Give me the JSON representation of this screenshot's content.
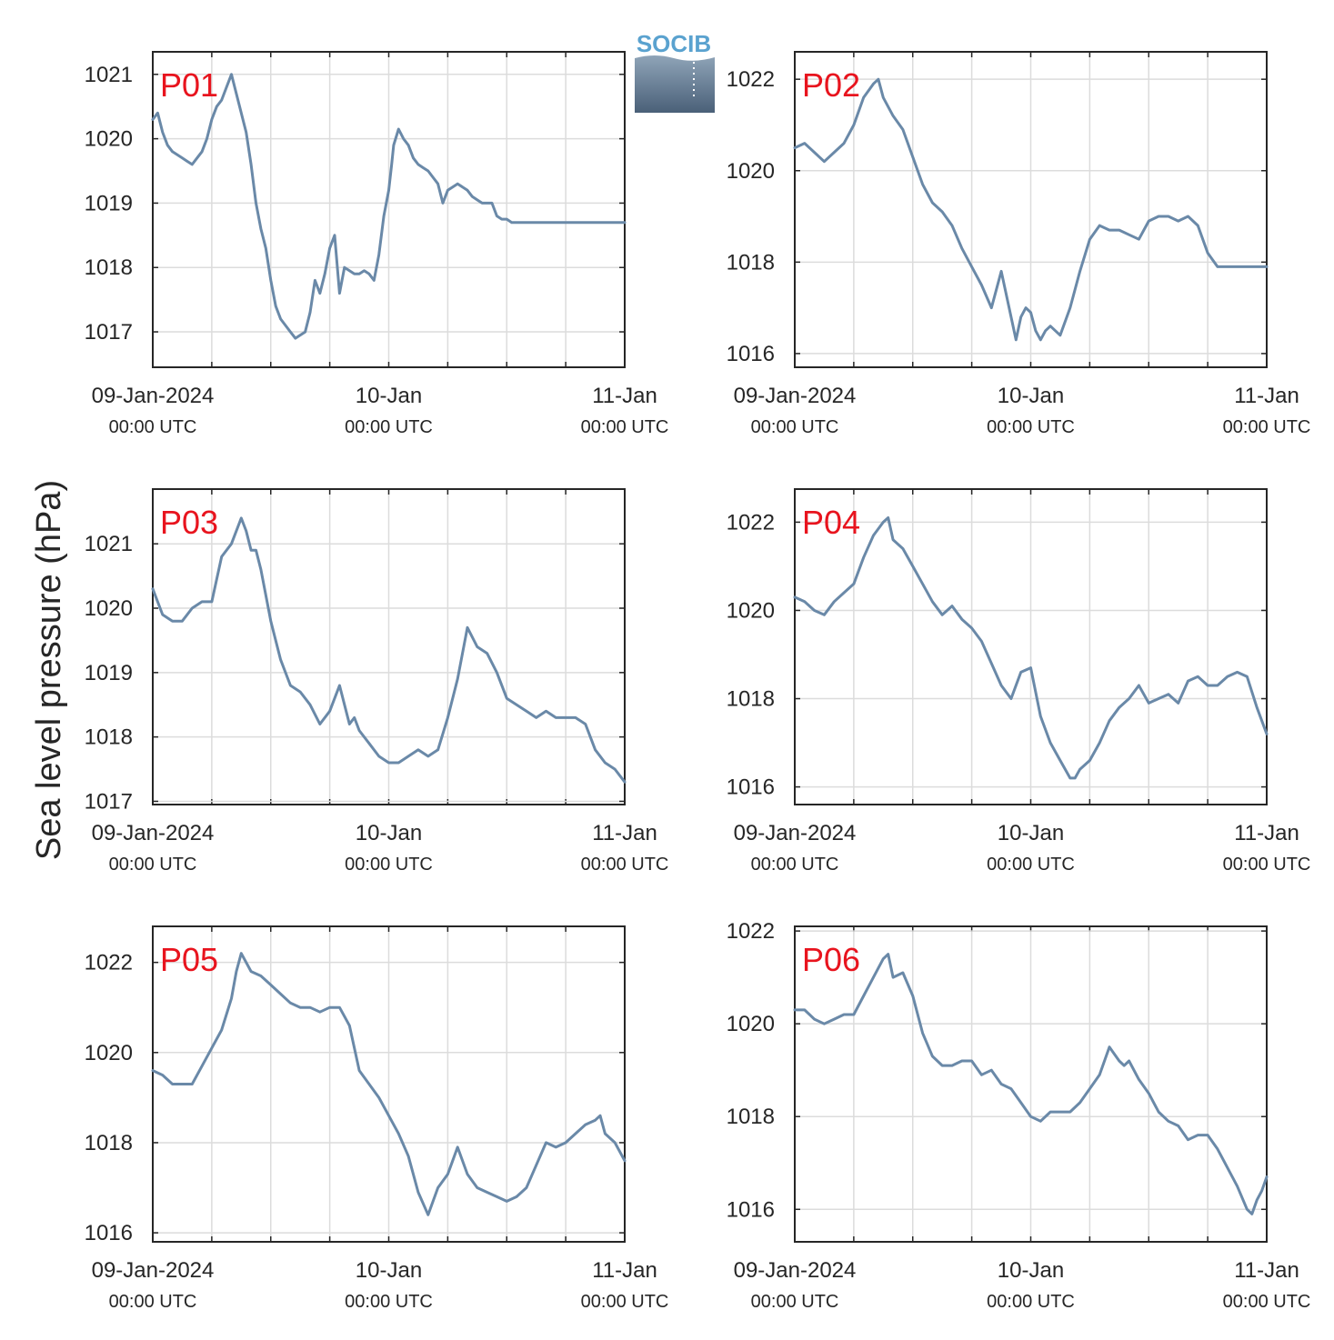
{
  "figure": {
    "ylabel": "Sea level pressure (hPa)",
    "logo_text": "SOCIB",
    "colors": {
      "line": "#6a89a8",
      "label": "#e8141e",
      "grid": "#dcdcdc",
      "axis": "#262626"
    }
  },
  "chart_data": [
    {
      "type": "line",
      "title": "P01",
      "ylabel": "Sea level pressure (hPa)",
      "ylim": [
        1016.45,
        1021.35
      ],
      "yticks": [
        1017,
        1018,
        1019,
        1020,
        1021
      ],
      "xlim": [
        0,
        48
      ],
      "xtick_labels": [
        {
          "x": 0,
          "date": "09-Jan-2024",
          "time": "00:00 UTC"
        },
        {
          "x": 24,
          "date": "10-Jan",
          "time": "00:00 UTC"
        },
        {
          "x": 48,
          "date": "11-Jan",
          "time": "00:00 UTC"
        }
      ],
      "grid": true,
      "x": [
        0,
        0.5,
        1,
        1.5,
        2,
        2.5,
        3,
        3.5,
        4,
        4.5,
        5,
        5.5,
        6,
        6.5,
        7,
        7.5,
        8,
        8.5,
        9,
        9.5,
        10,
        10.5,
        11,
        11.5,
        12,
        12.5,
        13,
        13.5,
        14,
        14.5,
        15,
        15.5,
        16,
        16.5,
        17,
        17.5,
        18,
        18.5,
        19,
        19.5,
        20,
        20.5,
        21,
        21.5,
        22,
        22.5,
        23,
        23.5,
        24,
        24.3,
        24.5,
        25,
        25.5,
        26,
        26.5,
        27,
        27.5,
        28,
        28.5,
        29,
        29.5,
        30,
        30.5,
        31,
        31.5,
        32,
        32.5,
        33,
        33.5,
        34,
        34.5,
        35,
        35.5,
        36,
        36.5,
        37,
        37.5,
        38,
        38.5,
        39,
        39.5,
        40,
        40.5,
        41,
        41.5,
        42,
        42.5,
        43,
        43.5,
        44,
        44.5,
        45,
        45.5,
        46,
        46.5,
        47,
        47.5,
        48
      ],
      "y": [
        1020.3,
        1020.4,
        1020.1,
        1019.9,
        1019.8,
        1019.75,
        1019.7,
        1019.65,
        1019.6,
        1019.7,
        1019.8,
        1020.0,
        1020.3,
        1020.5,
        1020.6,
        1020.8,
        1021.0,
        1020.7,
        1020.4,
        1020.1,
        1019.6,
        1019.0,
        1018.6,
        1018.3,
        1017.8,
        1017.4,
        1017.2,
        1017.1,
        1017.0,
        1016.9,
        1016.95,
        1017.0,
        1017.3,
        1017.8,
        1017.6,
        1017.9,
        1018.3,
        1018.5,
        1017.6,
        1018.0,
        1017.95,
        1017.9,
        1017.9,
        1017.95,
        1017.9,
        1017.8,
        1018.2,
        1018.8,
        1019.2,
        1019.6,
        1019.9,
        1020.15,
        1020.0,
        1019.9,
        1019.7,
        1019.6,
        1019.55,
        1019.5,
        1019.4,
        1019.3,
        1019.0,
        1019.2,
        1019.25,
        1019.3,
        1019.25,
        1019.2,
        1019.1,
        1019.05,
        1019.0,
        1019.0,
        1019.0,
        1018.8,
        1018.75,
        1018.75,
        1018.7,
        1018.7,
        1018.7,
        1018.7,
        1018.7,
        1018.7,
        1018.7,
        1018.7,
        1018.7,
        1018.7,
        1018.7,
        1018.7,
        1018.7,
        1018.7,
        1018.7,
        1018.7,
        1018.7,
        1018.7,
        1018.7,
        1018.7,
        1018.7,
        1018.7,
        1018.7,
        1018.7
      ]
    },
    {
      "type": "line",
      "title": "P02",
      "ylabel": "Sea level pressure (hPa)",
      "ylim": [
        1015.7,
        1022.6
      ],
      "yticks": [
        1016,
        1018,
        1020,
        1022
      ],
      "xlim": [
        0,
        48
      ],
      "xtick_labels": [
        {
          "x": 0,
          "date": "09-Jan-2024",
          "time": "00:00 UTC"
        },
        {
          "x": 24,
          "date": "10-Jan",
          "time": "00:00 UTC"
        },
        {
          "x": 48,
          "date": "11-Jan",
          "time": "00:00 UTC"
        }
      ],
      "grid": true,
      "x": [
        0,
        1,
        2,
        3,
        4,
        5,
        6,
        7,
        8,
        8.5,
        9,
        10,
        11,
        12,
        13,
        14,
        15,
        16,
        17,
        18,
        19,
        20,
        21,
        22,
        22.5,
        23,
        23.5,
        24,
        24.5,
        25,
        25.5,
        26,
        27,
        28,
        29,
        30,
        31,
        32,
        33,
        34,
        35,
        36,
        37,
        38,
        39,
        40,
        41,
        42,
        43,
        44,
        45,
        46,
        47,
        48
      ],
      "y": [
        1020.5,
        1020.6,
        1020.4,
        1020.2,
        1020.4,
        1020.6,
        1021.0,
        1021.6,
        1021.9,
        1022.0,
        1021.6,
        1021.2,
        1020.9,
        1020.3,
        1019.7,
        1019.3,
        1019.1,
        1018.8,
        1018.3,
        1017.9,
        1017.5,
        1017.0,
        1017.8,
        1016.8,
        1016.3,
        1016.8,
        1017.0,
        1016.9,
        1016.5,
        1016.3,
        1016.5,
        1016.6,
        1016.4,
        1017.0,
        1017.8,
        1018.5,
        1018.8,
        1018.7,
        1018.7,
        1018.6,
        1018.5,
        1018.9,
        1019.0,
        1019.0,
        1018.9,
        1019.0,
        1018.8,
        1018.2,
        1017.9,
        1017.9,
        1017.9,
        1017.9,
        1017.9,
        1017.9
      ]
    },
    {
      "type": "line",
      "title": "P03",
      "ylabel": "Sea level pressure (hPa)",
      "ylim": [
        1016.95,
        1021.85
      ],
      "yticks": [
        1017,
        1018,
        1019,
        1020,
        1021
      ],
      "xlim": [
        0,
        48
      ],
      "xtick_labels": [
        {
          "x": 0,
          "date": "09-Jan-2024",
          "time": "00:00 UTC"
        },
        {
          "x": 24,
          "date": "10-Jan",
          "time": "00:00 UTC"
        },
        {
          "x": 48,
          "date": "11-Jan",
          "time": "00:00 UTC"
        }
      ],
      "grid": true,
      "x": [
        0,
        1,
        2,
        3,
        4,
        5,
        6,
        7,
        8,
        9,
        9.5,
        10,
        10.5,
        11,
        12,
        13,
        14,
        15,
        16,
        17,
        18,
        19,
        20,
        20.5,
        21,
        22,
        23,
        24,
        25,
        26,
        27,
        28,
        29,
        30,
        31,
        32,
        33,
        34,
        35,
        36,
        37,
        38,
        39,
        40,
        41,
        42,
        43,
        44,
        45,
        46,
        47,
        48
      ],
      "y": [
        1020.3,
        1019.9,
        1019.8,
        1019.8,
        1020.0,
        1020.1,
        1020.1,
        1020.8,
        1021.0,
        1021.4,
        1021.2,
        1020.9,
        1020.9,
        1020.6,
        1019.8,
        1019.2,
        1018.8,
        1018.7,
        1018.5,
        1018.2,
        1018.4,
        1018.8,
        1018.2,
        1018.3,
        1018.1,
        1017.9,
        1017.7,
        1017.6,
        1017.6,
        1017.7,
        1017.8,
        1017.7,
        1017.8,
        1018.3,
        1018.9,
        1019.7,
        1019.4,
        1019.3,
        1019.0,
        1018.6,
        1018.5,
        1018.4,
        1018.3,
        1018.4,
        1018.3,
        1018.3,
        1018.3,
        1018.2,
        1017.8,
        1017.6,
        1017.5,
        1017.3
      ]
    },
    {
      "type": "line",
      "title": "P04",
      "ylabel": "Sea level pressure (hPa)",
      "ylim": [
        1015.6,
        1022.75
      ],
      "yticks": [
        1016,
        1018,
        1020,
        1022
      ],
      "xlim": [
        0,
        48
      ],
      "xtick_labels": [
        {
          "x": 0,
          "date": "09-Jan-2024",
          "time": "00:00 UTC"
        },
        {
          "x": 24,
          "date": "10-Jan",
          "time": "00:00 UTC"
        },
        {
          "x": 48,
          "date": "11-Jan",
          "time": "00:00 UTC"
        }
      ],
      "grid": true,
      "x": [
        0,
        1,
        2,
        3,
        4,
        5,
        6,
        7,
        8,
        9,
        9.5,
        10,
        11,
        12,
        13,
        14,
        15,
        16,
        17,
        18,
        19,
        20,
        21,
        22,
        23,
        24,
        25,
        26,
        27,
        28,
        28.5,
        29,
        30,
        31,
        32,
        33,
        34,
        35,
        36,
        37,
        38,
        39,
        40,
        41,
        42,
        43,
        44,
        45,
        46,
        47,
        48
      ],
      "y": [
        1020.3,
        1020.2,
        1020.0,
        1019.9,
        1020.2,
        1020.4,
        1020.6,
        1021.2,
        1021.7,
        1022.0,
        1022.1,
        1021.6,
        1021.4,
        1021.0,
        1020.6,
        1020.2,
        1019.9,
        1020.1,
        1019.8,
        1019.6,
        1019.3,
        1018.8,
        1018.3,
        1018.0,
        1018.6,
        1018.7,
        1017.6,
        1017.0,
        1016.6,
        1016.2,
        1016.2,
        1016.4,
        1016.6,
        1017.0,
        1017.5,
        1017.8,
        1018.0,
        1018.3,
        1017.9,
        1018.0,
        1018.1,
        1017.9,
        1018.4,
        1018.5,
        1018.3,
        1018.3,
        1018.5,
        1018.6,
        1018.5,
        1017.8,
        1017.2
      ]
    },
    {
      "type": "line",
      "title": "P05",
      "ylabel": "Sea level pressure (hPa)",
      "ylim": [
        1015.8,
        1022.8
      ],
      "yticks": [
        1016,
        1018,
        1020,
        1022
      ],
      "xlim": [
        0,
        48
      ],
      "xtick_labels": [
        {
          "x": 0,
          "date": "09-Jan-2024",
          "time": "00:00 UTC"
        },
        {
          "x": 24,
          "date": "10-Jan",
          "time": "00:00 UTC"
        },
        {
          "x": 48,
          "date": "11-Jan",
          "time": "00:00 UTC"
        }
      ],
      "grid": true,
      "x": [
        0,
        1,
        2,
        3,
        4,
        5,
        6,
        7,
        8,
        8.5,
        9,
        10,
        11,
        12,
        13,
        14,
        15,
        16,
        17,
        18,
        19,
        20,
        21,
        22,
        23,
        24,
        25,
        26,
        27,
        28,
        29,
        30,
        30.5,
        31,
        32,
        33,
        34,
        35,
        36,
        37,
        38,
        39,
        40,
        41,
        42,
        43,
        44,
        45,
        45.5,
        46,
        47,
        48
      ],
      "y": [
        1019.6,
        1019.5,
        1019.3,
        1019.3,
        1019.3,
        1019.7,
        1020.1,
        1020.5,
        1021.2,
        1021.8,
        1022.2,
        1021.8,
        1021.7,
        1021.5,
        1021.3,
        1021.1,
        1021.0,
        1021.0,
        1020.9,
        1021.0,
        1021.0,
        1020.6,
        1019.6,
        1019.3,
        1019.0,
        1018.6,
        1018.2,
        1017.7,
        1016.9,
        1016.4,
        1017.0,
        1017.3,
        1017.6,
        1017.9,
        1017.3,
        1017.0,
        1016.9,
        1016.8,
        1016.7,
        1016.8,
        1017.0,
        1017.5,
        1018.0,
        1017.9,
        1018.0,
        1018.2,
        1018.4,
        1018.5,
        1018.6,
        1018.2,
        1018.0,
        1017.6
      ]
    },
    {
      "type": "line",
      "title": "P06",
      "ylabel": "Sea level pressure (hPa)",
      "ylim": [
        1015.3,
        1022.1
      ],
      "yticks": [
        1016,
        1018,
        1020,
        1022
      ],
      "xlim": [
        0,
        48
      ],
      "xtick_labels": [
        {
          "x": 0,
          "date": "09-Jan-2024",
          "time": "00:00 UTC"
        },
        {
          "x": 24,
          "date": "10-Jan",
          "time": "00:00 UTC"
        },
        {
          "x": 48,
          "date": "11-Jan",
          "time": "00:00 UTC"
        }
      ],
      "grid": true,
      "x": [
        0,
        1,
        2,
        3,
        4,
        5,
        6,
        7,
        8,
        9,
        9.5,
        10,
        11,
        12,
        13,
        14,
        15,
        16,
        17,
        18,
        19,
        20,
        21,
        22,
        23,
        24,
        25,
        26,
        27,
        28,
        29,
        30,
        31,
        32,
        33,
        33.5,
        34,
        35,
        36,
        37,
        38,
        39,
        40,
        41,
        42,
        43,
        44,
        45,
        46,
        46.5,
        47,
        47.5,
        48
      ],
      "y": [
        1020.3,
        1020.3,
        1020.1,
        1020.0,
        1020.1,
        1020.2,
        1020.2,
        1020.6,
        1021.0,
        1021.4,
        1021.5,
        1021.0,
        1021.1,
        1020.6,
        1019.8,
        1019.3,
        1019.1,
        1019.1,
        1019.2,
        1019.2,
        1018.9,
        1019.0,
        1018.7,
        1018.6,
        1018.3,
        1018.0,
        1017.9,
        1018.1,
        1018.1,
        1018.1,
        1018.3,
        1018.6,
        1018.9,
        1019.5,
        1019.2,
        1019.1,
        1019.2,
        1018.8,
        1018.5,
        1018.1,
        1017.9,
        1017.8,
        1017.5,
        1017.6,
        1017.6,
        1017.3,
        1016.9,
        1016.5,
        1016.0,
        1015.9,
        1016.2,
        1016.4,
        1016.7
      ]
    }
  ]
}
